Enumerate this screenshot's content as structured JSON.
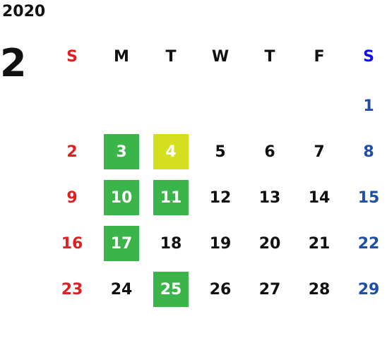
{
  "header": {
    "year": "2020",
    "month": "2"
  },
  "colors": {
    "sunday": "#e02020",
    "saturday": "#1e4fa8",
    "saturday_header": "#1010e0",
    "weekday": "#111111",
    "holiday_green": "#3bb54a",
    "special_yellow": "#d4df1f",
    "highlight_text": "#ffffff"
  },
  "weekdays": [
    {
      "label": "S",
      "type": "sunday"
    },
    {
      "label": "M",
      "type": "weekday"
    },
    {
      "label": "T",
      "type": "weekday"
    },
    {
      "label": "W",
      "type": "weekday"
    },
    {
      "label": "T",
      "type": "weekday"
    },
    {
      "label": "F",
      "type": "weekday"
    },
    {
      "label": "S",
      "type": "saturday"
    }
  ],
  "weeks": [
    [
      null,
      null,
      null,
      null,
      null,
      null,
      {
        "d": "1"
      }
    ],
    [
      {
        "d": "2"
      },
      {
        "d": "3",
        "bg": "green"
      },
      {
        "d": "4",
        "bg": "yellow"
      },
      {
        "d": "5"
      },
      {
        "d": "6"
      },
      {
        "d": "7"
      },
      {
        "d": "8"
      }
    ],
    [
      {
        "d": "9"
      },
      {
        "d": "10",
        "bg": "green"
      },
      {
        "d": "11",
        "bg": "green"
      },
      {
        "d": "12"
      },
      {
        "d": "13"
      },
      {
        "d": "14"
      },
      {
        "d": "15"
      }
    ],
    [
      {
        "d": "16"
      },
      {
        "d": "17",
        "bg": "green"
      },
      {
        "d": "18"
      },
      {
        "d": "19"
      },
      {
        "d": "20"
      },
      {
        "d": "21"
      },
      {
        "d": "22"
      }
    ],
    [
      {
        "d": "23"
      },
      {
        "d": "24"
      },
      {
        "d": "25",
        "bg": "green"
      },
      {
        "d": "26"
      },
      {
        "d": "27"
      },
      {
        "d": "28"
      },
      {
        "d": "29"
      }
    ]
  ]
}
